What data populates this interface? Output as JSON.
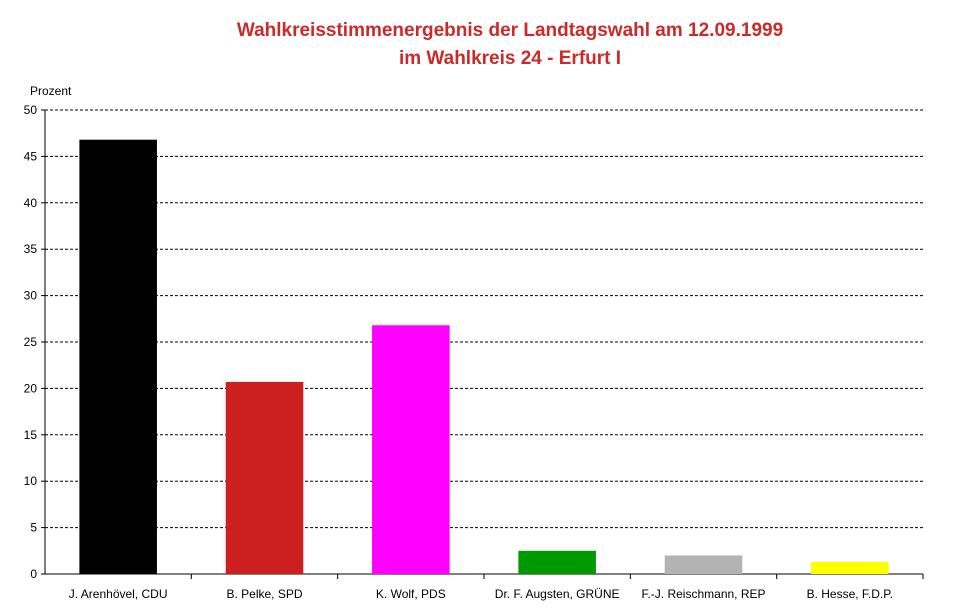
{
  "chart_data": {
    "type": "bar",
    "title": "Wahlkreisstimmenergebnis der Landtagswahl am 12.09.1999",
    "subtitle": "im Wahlkreis 24 - Erfurt I",
    "ylabel": "Prozent",
    "xlabel": "",
    "ylim": [
      0,
      50
    ],
    "yticks": [
      0,
      5,
      10,
      15,
      20,
      25,
      30,
      35,
      40,
      45,
      50
    ],
    "grid": "horizontal-dashed",
    "categories": [
      "J. Arenhövel, CDU",
      "B. Pelke, SPD",
      "K. Wolf, PDS",
      "Dr. F. Augsten, GRÜNE",
      "F.-J. Reischmann, REP",
      "B. Hesse, F.D.P."
    ],
    "values": [
      46.8,
      20.7,
      26.8,
      2.5,
      2.0,
      1.3
    ],
    "colors": [
      "#000000",
      "#cc1f1f",
      "#ff00ff",
      "#009900",
      "#b3b3b3",
      "#ffff00"
    ]
  }
}
